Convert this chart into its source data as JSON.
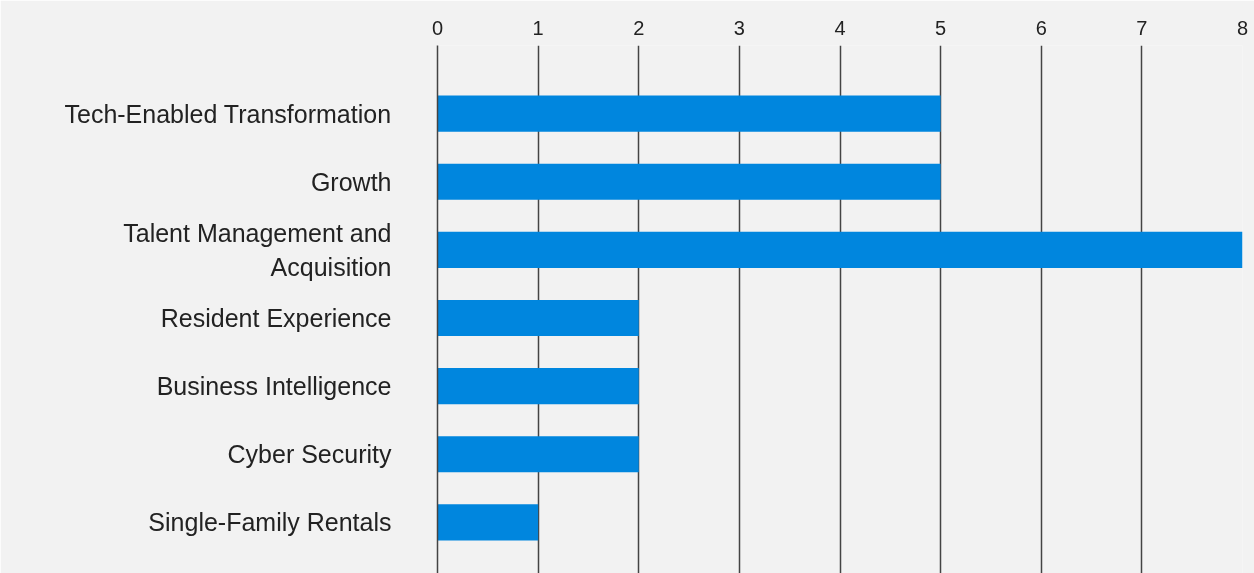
{
  "chart_data": {
    "type": "bar",
    "orientation": "horizontal",
    "categories": [
      "Tech-Enabled Transformation",
      "Growth",
      "Talent Management and Acquisition",
      "Resident Experience",
      "Business Intelligence",
      "Cyber Security",
      "Single-Family Rentals"
    ],
    "values": [
      5,
      5,
      8,
      2,
      2,
      2,
      1
    ],
    "color": "#0086de",
    "xlim": [
      0,
      8
    ],
    "xticks": [
      0,
      1,
      2,
      3,
      4,
      5,
      6,
      7,
      8
    ],
    "grid": "x"
  }
}
